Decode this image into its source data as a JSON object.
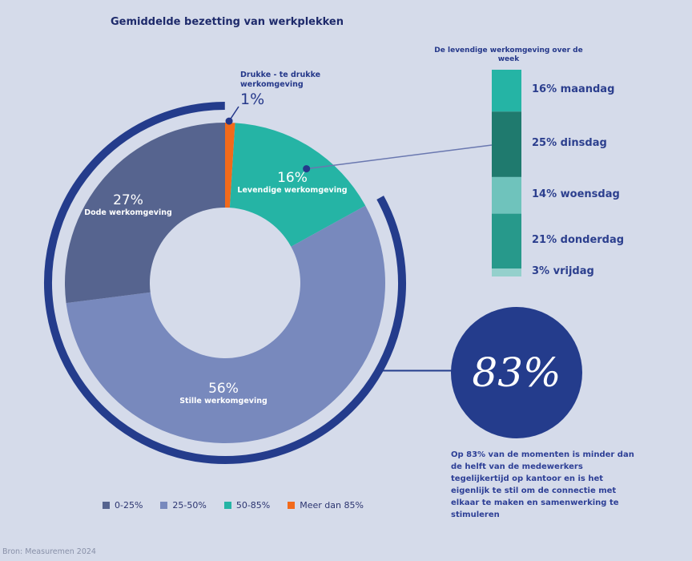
{
  "chart_data": [
    {
      "type": "pie",
      "title": "Gemiddelde bezetting van werkplekken",
      "slices": [
        {
          "label": "Drukke - te drukke werkomgeving",
          "value": 1,
          "legend": "Meer dan 85%",
          "color": "#f26a1b"
        },
        {
          "label": "Levendige werkomgeving",
          "value": 16,
          "legend": "50-85%",
          "color": "#25b4a5"
        },
        {
          "label": "Stille werkomgeving",
          "value": 56,
          "legend": "25-50%",
          "color": "#7889bd"
        },
        {
          "label": "Dode werkomgeving",
          "value": 27,
          "legend": "0-25%",
          "color": "#56648f"
        }
      ],
      "legend_order": [
        "0-25%",
        "25-50%",
        "50-85%",
        "Meer dan 85%"
      ],
      "legend_placement": "bottom",
      "highlight": {
        "value": "83%",
        "covers": [
          "Stille werkomgeving",
          "Dode werkomgeving"
        ],
        "color": "#243c8c"
      }
    },
    {
      "type": "bar",
      "orientation": "stacked-vertical",
      "title": "De levendige werkomgeving over de week",
      "categories": [
        "maandag",
        "dinsdag",
        "woensdag",
        "donderdag",
        "vrijdag"
      ],
      "values": [
        16,
        25,
        14,
        21,
        3
      ],
      "labels": [
        "16% maandag",
        "25% dinsdag",
        "14% woensdag",
        "21% donderdag",
        "3% vrijdag"
      ],
      "colors": [
        "#25b4a5",
        "#1f7a6e",
        "#6fc3bc",
        "#27998b",
        "#94d0cc"
      ]
    }
  ],
  "labels": {
    "drukke_name": "Drukke - te drukke werkomgeving",
    "drukke_pct": "1%",
    "levendige_pct": "16%",
    "levendige_name": "Levendige werkomgeving",
    "stille_pct": "56%",
    "stille_name": "Stille werkomgeving",
    "dode_pct": "27%",
    "dode_name": "Dode werkomgeving"
  },
  "callout": {
    "big_value": "83%",
    "text": "Op 83% van de momenten is minder dan de helft van de medewerkers tegelijkertijd op kantoor en is het eigenlijk te stil om de connectie met elkaar te maken en samenwerking te stimuleren"
  },
  "source": "Bron: Measuremen 2024"
}
